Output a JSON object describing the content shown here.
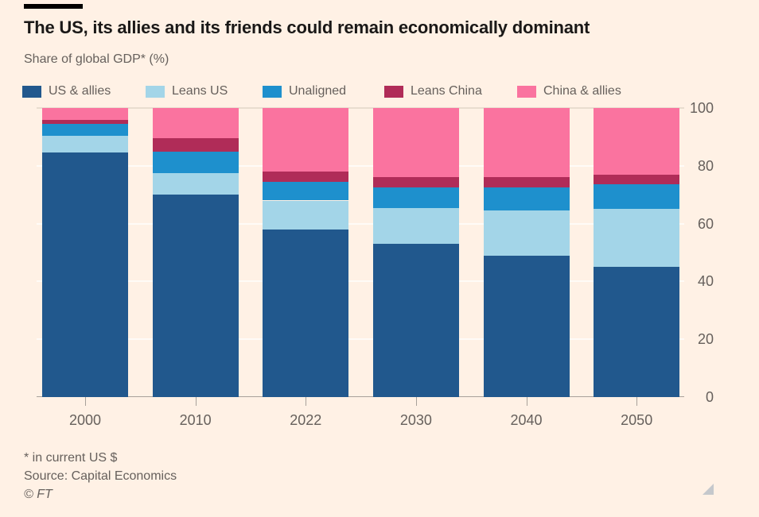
{
  "colors": {
    "background": "#fff1e5",
    "title_text": "#1a1817",
    "muted_text": "#66605c",
    "axis": "#a8a19a",
    "gridline": "rgba(255,255,255,0.68)",
    "top_gridline": "#e9ddcf",
    "top_rule": "#000000",
    "resize_handle": "#c5c8cc"
  },
  "chart_data": {
    "type": "bar",
    "stacked": true,
    "title": "The US, its allies and its friends could remain economically dominant",
    "subtitle": "Share of global GDP* (%)",
    "categories": [
      "2000",
      "2010",
      "2022",
      "2030",
      "2040",
      "2050"
    ],
    "series": [
      {
        "name": "US & allies",
        "color": "#21588d",
        "values": [
          84.5,
          70,
          58,
          53,
          49,
          45
        ]
      },
      {
        "name": "Leans US",
        "color": "#a3d5e8",
        "values": [
          6,
          7.5,
          10,
          12.5,
          15.5,
          20
        ]
      },
      {
        "name": "Unaligned",
        "color": "#1e90cd",
        "values": [
          4,
          7.5,
          6.5,
          7,
          8,
          8.5
        ]
      },
      {
        "name": "Leans China",
        "color": "#b02c58",
        "values": [
          1.5,
          4.5,
          3.5,
          3.5,
          3.5,
          3.5
        ]
      },
      {
        "name": "China & allies",
        "color": "#fa739f",
        "values": [
          4,
          10.5,
          22,
          24,
          24,
          23
        ]
      }
    ],
    "ylim": [
      0,
      100
    ],
    "yticks": [
      0,
      20,
      40,
      60,
      80,
      100
    ],
    "ytick_side": "right",
    "legend_position": "top",
    "grid": "horizontal",
    "footnote": "* in current US $",
    "source": "Source: Capital Economics",
    "copyright": "© FT"
  }
}
